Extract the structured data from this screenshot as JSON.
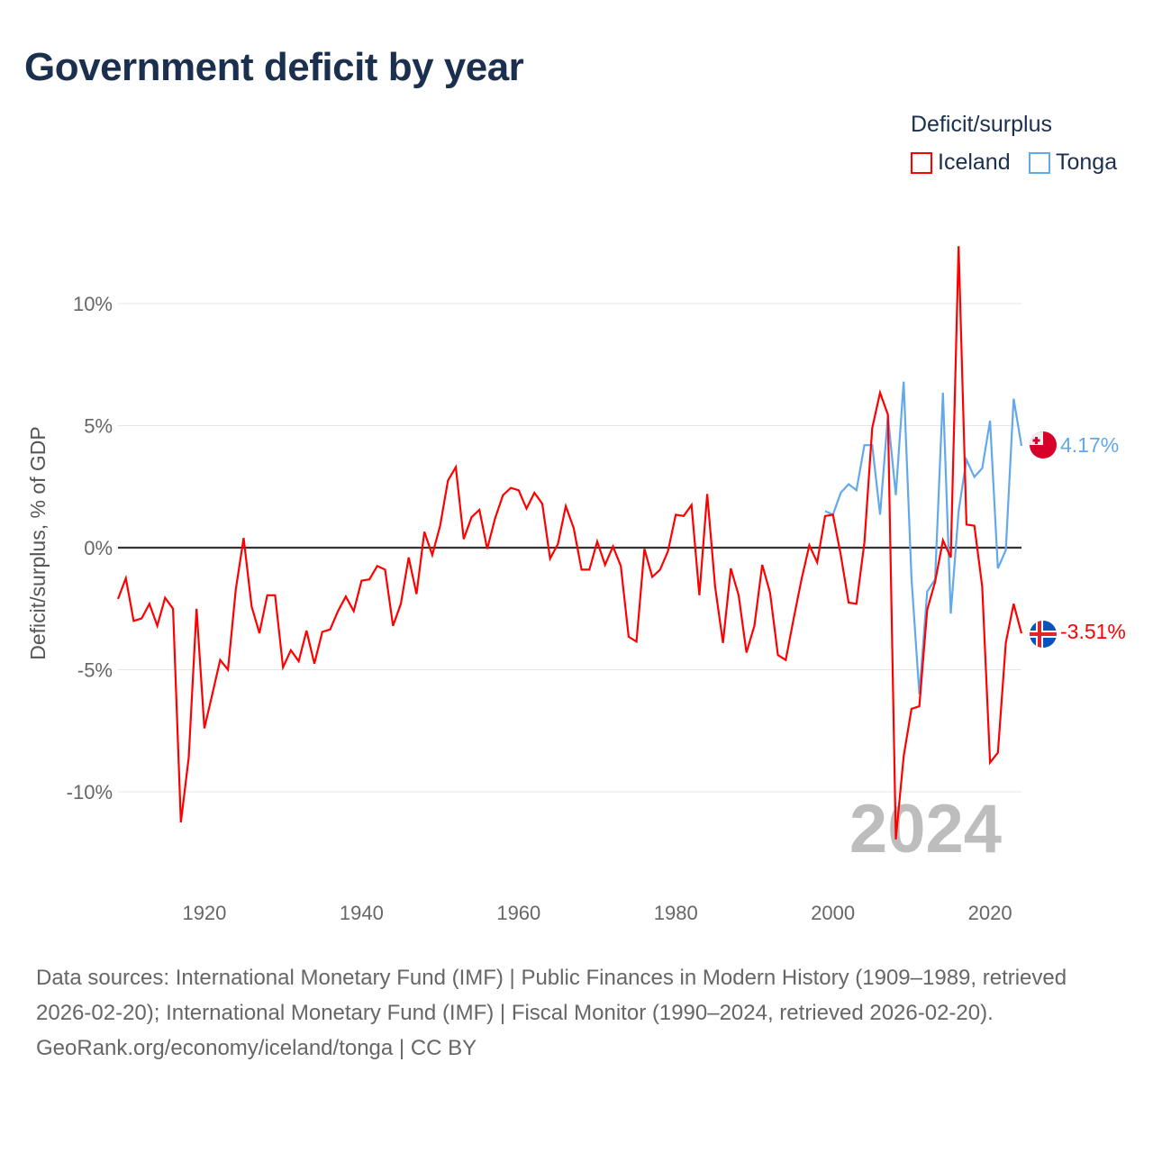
{
  "title": "Government deficit by year",
  "legend": {
    "title": "Deficit/surplus",
    "items": [
      {
        "label": "Iceland",
        "color": "#ff0000"
      },
      {
        "label": "Tonga",
        "color": "#62a8ec"
      }
    ]
  },
  "chart_data": {
    "type": "line",
    "title": "Government deficit by year",
    "ylabel": "Deficit/surplus, % of GDP",
    "xlabel": "",
    "xlim": [
      1909,
      2024
    ],
    "ylim": [
      -12.8,
      12.8
    ],
    "x_ticks": [
      {
        "value": 1920,
        "label": "1920"
      },
      {
        "value": 1940,
        "label": "1940"
      },
      {
        "value": 1960,
        "label": "1960"
      },
      {
        "value": 1980,
        "label": "1980"
      },
      {
        "value": 2000,
        "label": "2000"
      },
      {
        "value": 2020,
        "label": "2020"
      }
    ],
    "y_ticks": [
      {
        "value": 10,
        "label": "10%"
      },
      {
        "value": 5,
        "label": "5%"
      },
      {
        "value": 0,
        "label": "0%"
      },
      {
        "value": -5,
        "label": "-5%"
      },
      {
        "value": -10,
        "label": "-10%"
      }
    ],
    "grid": true,
    "current_year": "2024",
    "series": [
      {
        "name": "Iceland",
        "color": "#ff0000",
        "start_year": 1909,
        "end_label": "-3.51%",
        "flag": "iceland",
        "values": [
          -2.1,
          -1.25,
          -3.0,
          -2.9,
          -2.3,
          -3.2,
          -2.05,
          -2.5,
          -11.25,
          -8.6,
          -2.5,
          -7.4,
          -6.0,
          -4.6,
          -5.0,
          -1.7,
          0.4,
          -2.4,
          -3.5,
          -1.95,
          -1.95,
          -4.9,
          -4.2,
          -4.65,
          -3.4,
          -4.75,
          -3.45,
          -3.35,
          -2.6,
          -2.0,
          -2.6,
          -1.35,
          -1.3,
          -0.75,
          -0.9,
          -3.2,
          -2.3,
          -0.4,
          -1.9,
          0.65,
          -0.3,
          0.9,
          2.75,
          3.3,
          0.35,
          1.25,
          1.55,
          -0.05,
          1.2,
          2.15,
          2.45,
          2.35,
          1.6,
          2.25,
          1.8,
          -0.45,
          0.15,
          1.7,
          0.8,
          -0.9,
          -0.9,
          0.25,
          -0.7,
          0.05,
          -0.75,
          -3.65,
          -3.85,
          -0.05,
          -1.2,
          -0.9,
          -0.15,
          1.35,
          1.3,
          1.75,
          -1.95,
          2.2,
          -1.6,
          -3.9,
          -0.85,
          -1.95,
          -4.3,
          -3.2,
          -0.7,
          -1.85,
          -4.4,
          -4.6,
          -2.9,
          -1.3,
          0.1,
          -0.6,
          1.3,
          1.35,
          -0.3,
          -2.25,
          -2.3,
          0.2,
          4.9,
          6.35,
          5.45,
          -11.95,
          -8.55,
          -6.6,
          -6.5,
          -2.55,
          -1.4,
          0.3,
          -0.4,
          12.35,
          0.95,
          0.9,
          -1.6,
          -8.8,
          -8.4,
          -3.9,
          -2.3,
          -3.51
        ]
      },
      {
        "name": "Tonga",
        "color": "#62a8ec",
        "start_year": 1999,
        "end_label": "4.17%",
        "flag": "tonga",
        "values": [
          1.5,
          1.35,
          2.25,
          2.6,
          2.35,
          4.2,
          4.2,
          1.35,
          5.4,
          2.15,
          6.8,
          -1.25,
          -6.0,
          -1.8,
          -1.3,
          6.35,
          -2.7,
          1.5,
          3.6,
          2.9,
          3.25,
          5.2,
          -0.85,
          -0.1,
          6.1,
          4.17
        ]
      }
    ]
  },
  "footer": {
    "sources": "Data sources: International Monetary Fund (IMF) | Public Finances in Modern History (1909–1989, retrieved 2026-02-20); International Monetary Fund (IMF) | Fiscal Monitor (1990–2024, retrieved 2026-02-20).",
    "credit": "GeoRank.org/economy/iceland/tonga | CC BY"
  }
}
